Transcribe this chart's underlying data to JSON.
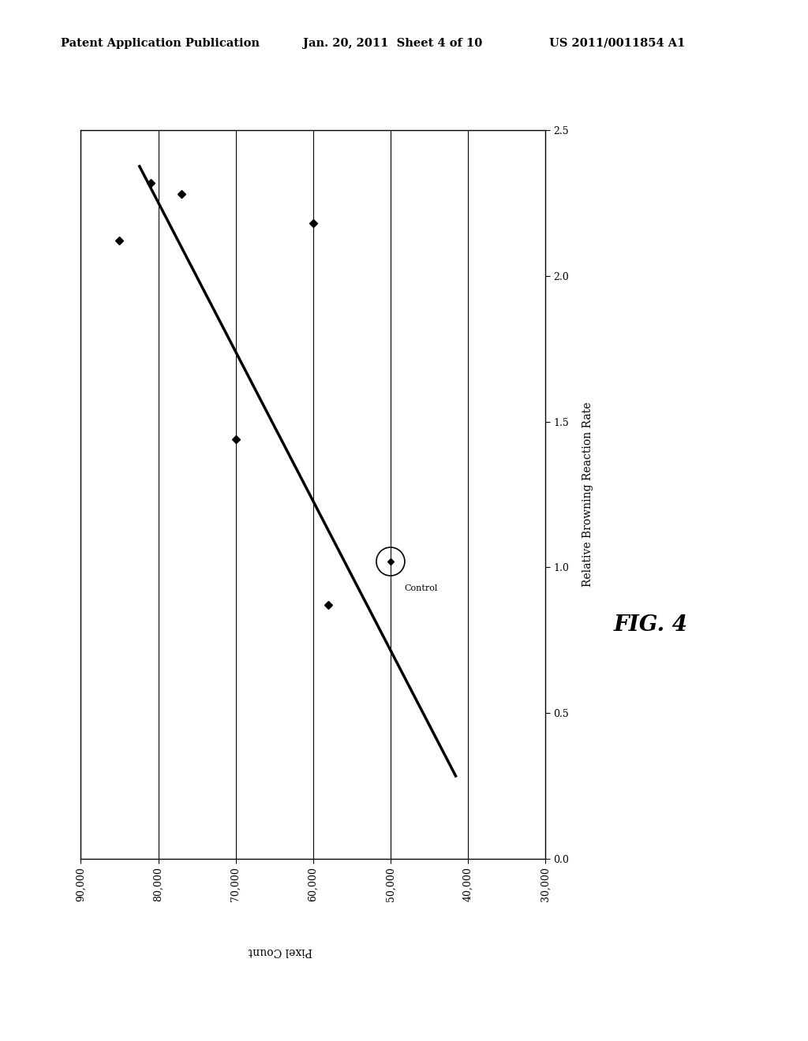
{
  "header_left": "Patent Application Publication",
  "header_mid": "Jan. 20, 2011  Sheet 4 of 10",
  "header_right": "US 2011/0011854 A1",
  "fig_label": "FIG. 4",
  "xlabel": "Pixel Count",
  "ylabel": "Relative Browning Reaction Rate",
  "xlim": [
    90000,
    30000
  ],
  "ylim": [
    0.0,
    2.5
  ],
  "xticks": [
    90000,
    80000,
    70000,
    60000,
    50000,
    40000,
    30000
  ],
  "yticks": [
    0.0,
    0.5,
    1.0,
    1.5,
    2.0,
    2.5
  ],
  "data_points_x": [
    85000,
    81000,
    77000,
    70000,
    60000,
    58000
  ],
  "data_points_y": [
    2.12,
    2.32,
    2.28,
    1.44,
    2.18,
    0.87
  ],
  "control_x": 50000,
  "control_y": 1.02,
  "trend_x": [
    82500,
    41500
  ],
  "trend_y": [
    2.38,
    0.28
  ],
  "internal_vlines": [
    80000,
    70000,
    60000,
    50000,
    40000
  ],
  "background_color": "#ffffff",
  "line_color": "#000000",
  "point_color": "#000000",
  "header_fontsize": 10.5,
  "ylabel_fontsize": 10,
  "xlabel_fontsize": 10,
  "fig4_fontsize": 20,
  "tick_fontsize": 9,
  "control_label_fontsize": 8
}
